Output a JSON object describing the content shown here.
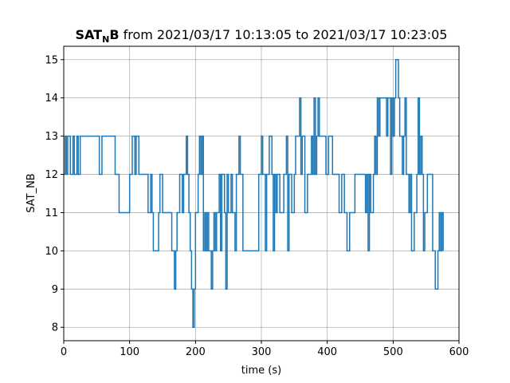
{
  "chart_data": {
    "type": "line",
    "step": true,
    "title": {
      "bold_main": "SAT",
      "bold_subscript": "N",
      "bold_after": "B",
      "rest": " from 2021/03/17 10:13:05 to 2021/03/17 10:23:05"
    },
    "xlabel": "time (s)",
    "ylabel": "SAT_NB",
    "xlim": [
      0,
      600
    ],
    "ylim": [
      7.65,
      15.35
    ],
    "xticks": [
      0,
      100,
      200,
      300,
      400,
      500,
      600
    ],
    "yticks": [
      8,
      9,
      10,
      11,
      12,
      13,
      14,
      15
    ],
    "grid": true,
    "series_color": "#1f77b4",
    "series": [
      {
        "points": [
          [
            0,
            12
          ],
          [
            2,
            13
          ],
          [
            4,
            12
          ],
          [
            6,
            13
          ],
          [
            10,
            12
          ],
          [
            14,
            13
          ],
          [
            16,
            12
          ],
          [
            20,
            13
          ],
          [
            22,
            12
          ],
          [
            25,
            13
          ],
          [
            54,
            12
          ],
          [
            58,
            13
          ],
          [
            78,
            12
          ],
          [
            84,
            11
          ],
          [
            100,
            12
          ],
          [
            104,
            13
          ],
          [
            108,
            12
          ],
          [
            110,
            13
          ],
          [
            114,
            12
          ],
          [
            128,
            11
          ],
          [
            132,
            12
          ],
          [
            134,
            11
          ],
          [
            136,
            10
          ],
          [
            144,
            11
          ],
          [
            146,
            12
          ],
          [
            150,
            11
          ],
          [
            164,
            10
          ],
          [
            168,
            9
          ],
          [
            170,
            10
          ],
          [
            172,
            11
          ],
          [
            176,
            12
          ],
          [
            180,
            11
          ],
          [
            182,
            12
          ],
          [
            186,
            13
          ],
          [
            188,
            12
          ],
          [
            190,
            11
          ],
          [
            192,
            10
          ],
          [
            194,
            9
          ],
          [
            196,
            8
          ],
          [
            198,
            9
          ],
          [
            200,
            11
          ],
          [
            204,
            12
          ],
          [
            206,
            13
          ],
          [
            208,
            12
          ],
          [
            210,
            13
          ],
          [
            212,
            10
          ],
          [
            214,
            11
          ],
          [
            216,
            10
          ],
          [
            218,
            11
          ],
          [
            220,
            10
          ],
          [
            224,
            9
          ],
          [
            226,
            10
          ],
          [
            228,
            11
          ],
          [
            230,
            10
          ],
          [
            232,
            11
          ],
          [
            236,
            12
          ],
          [
            238,
            10
          ],
          [
            240,
            12
          ],
          [
            244,
            11
          ],
          [
            246,
            9
          ],
          [
            248,
            12
          ],
          [
            250,
            11
          ],
          [
            254,
            12
          ],
          [
            256,
            11
          ],
          [
            260,
            10
          ],
          [
            262,
            12
          ],
          [
            266,
            13
          ],
          [
            268,
            12
          ],
          [
            272,
            10
          ],
          [
            276,
            10
          ],
          [
            296,
            12
          ],
          [
            300,
            13
          ],
          [
            302,
            12
          ],
          [
            306,
            10
          ],
          [
            308,
            12
          ],
          [
            312,
            13
          ],
          [
            316,
            12
          ],
          [
            318,
            10
          ],
          [
            320,
            12
          ],
          [
            322,
            11
          ],
          [
            324,
            12
          ],
          [
            328,
            11
          ],
          [
            334,
            12
          ],
          [
            338,
            13
          ],
          [
            340,
            10
          ],
          [
            342,
            12
          ],
          [
            346,
            11
          ],
          [
            350,
            12
          ],
          [
            352,
            13
          ],
          [
            356,
            13
          ],
          [
            358,
            14
          ],
          [
            360,
            12
          ],
          [
            362,
            13
          ],
          [
            366,
            11
          ],
          [
            370,
            12
          ],
          [
            376,
            13
          ],
          [
            378,
            12
          ],
          [
            380,
            14
          ],
          [
            382,
            12
          ],
          [
            384,
            13
          ],
          [
            386,
            14
          ],
          [
            388,
            13
          ],
          [
            392,
            13
          ],
          [
            398,
            12
          ],
          [
            402,
            13
          ],
          [
            408,
            12
          ],
          [
            412,
            12
          ],
          [
            416,
            12
          ],
          [
            418,
            11
          ],
          [
            422,
            12
          ],
          [
            426,
            11
          ],
          [
            430,
            10
          ],
          [
            434,
            11
          ],
          [
            442,
            12
          ],
          [
            450,
            12
          ],
          [
            456,
            12
          ],
          [
            458,
            11
          ],
          [
            460,
            12
          ],
          [
            462,
            10
          ],
          [
            464,
            12
          ],
          [
            466,
            11
          ],
          [
            470,
            12
          ],
          [
            472,
            13
          ],
          [
            474,
            12
          ],
          [
            476,
            14
          ],
          [
            478,
            13
          ],
          [
            480,
            14
          ],
          [
            490,
            13
          ],
          [
            492,
            14
          ],
          [
            496,
            12
          ],
          [
            498,
            14
          ],
          [
            500,
            13
          ],
          [
            502,
            14
          ],
          [
            504,
            15
          ],
          [
            508,
            14
          ],
          [
            510,
            13
          ],
          [
            514,
            12
          ],
          [
            516,
            13
          ],
          [
            518,
            14
          ],
          [
            520,
            12
          ],
          [
            524,
            11
          ],
          [
            526,
            12
          ],
          [
            528,
            10
          ],
          [
            532,
            11
          ],
          [
            536,
            12
          ],
          [
            538,
            14
          ],
          [
            540,
            12
          ],
          [
            542,
            13
          ],
          [
            544,
            12
          ],
          [
            546,
            10
          ],
          [
            548,
            11
          ],
          [
            552,
            12
          ],
          [
            560,
            10
          ],
          [
            564,
            9
          ],
          [
            568,
            10
          ],
          [
            570,
            11
          ],
          [
            572,
            10
          ],
          [
            574,
            11
          ],
          [
            576,
            10
          ]
        ]
      }
    ]
  }
}
